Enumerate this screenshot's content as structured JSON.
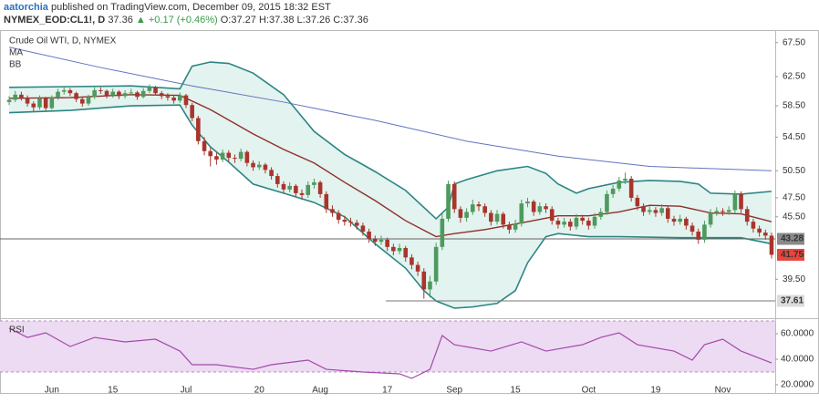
{
  "header": {
    "author": "aatorchia",
    "published": "published on TradingView.com, December 09, 2015 18:32 EST",
    "symbol": "NYMEX_EOD:CL1!, D",
    "price": "37.36",
    "change": "▲ +0.17 (+0.46%)",
    "ohlc": "O:37.27 H:37.38 L:37.26 C:37.36"
  },
  "chart_data": {
    "type": "candlestick",
    "title": "Crude Oil WTI, D, NYMEX",
    "log_scale": true,
    "up_color": "#4e9a5e",
    "down_color": "#a8352c",
    "xlim": [
      -1.5,
      125.6
    ],
    "xticks": [
      {
        "value": 7,
        "label": "Jun"
      },
      {
        "value": 17,
        "label": "15"
      },
      {
        "value": 29,
        "label": "Jul"
      },
      {
        "value": 41,
        "label": "20"
      },
      {
        "value": 51,
        "label": "Aug"
      },
      {
        "value": 62,
        "label": "17"
      },
      {
        "value": 73,
        "label": "Sep"
      },
      {
        "value": 83,
        "label": "15"
      },
      {
        "value": 95,
        "label": "Oct"
      },
      {
        "value": 106,
        "label": "19"
      },
      {
        "value": 117,
        "label": "Nov"
      }
    ],
    "ylim": [
      36.24,
      69.3
    ],
    "yticks": [
      {
        "value": 67.5,
        "label": "67.50"
      },
      {
        "value": 62.5,
        "label": "62.50"
      },
      {
        "value": 58.5,
        "label": "58.50"
      },
      {
        "value": 54.5,
        "label": "54.50"
      },
      {
        "value": 50.5,
        "label": "50.50"
      },
      {
        "value": 47.5,
        "label": "47.50"
      },
      {
        "value": 45.5,
        "label": "45.50"
      },
      {
        "value": 39.5,
        "label": "39.50"
      }
    ],
    "price_lines": [
      {
        "value": 43.28,
        "color": "#8a8a8a"
      },
      {
        "value": 41.75,
        "color": "#e8453c"
      },
      {
        "value": 37.61,
        "color": "#dcdcdc"
      }
    ],
    "ohlc": [
      [
        59.0,
        59.8,
        58.6,
        59.3
      ],
      [
        59.3,
        60.5,
        59.0,
        60.0
      ],
      [
        60.0,
        60.4,
        59.2,
        59.6
      ],
      [
        59.6,
        59.9,
        58.4,
        58.8
      ],
      [
        58.8,
        59.1,
        57.8,
        58.3
      ],
      [
        58.3,
        59.9,
        58.0,
        59.5
      ],
      [
        59.5,
        59.7,
        57.9,
        58.2
      ],
      [
        58.2,
        59.9,
        58.0,
        59.6
      ],
      [
        59.6,
        60.8,
        59.3,
        60.4
      ],
      [
        60.4,
        61.1,
        60.0,
        60.6
      ],
      [
        60.6,
        60.9,
        59.8,
        60.2
      ],
      [
        60.2,
        60.4,
        59.0,
        59.4
      ],
      [
        59.4,
        59.7,
        58.4,
        58.8
      ],
      [
        58.8,
        60.0,
        58.5,
        59.7
      ],
      [
        59.7,
        61.0,
        59.4,
        60.6
      ],
      [
        60.6,
        61.0,
        60.1,
        60.5
      ],
      [
        60.5,
        60.7,
        59.5,
        59.9
      ],
      [
        59.9,
        60.8,
        59.6,
        60.4
      ],
      [
        60.4,
        60.6,
        59.4,
        59.8
      ],
      [
        59.8,
        60.6,
        59.5,
        60.2
      ],
      [
        60.2,
        60.8,
        59.9,
        60.3
      ],
      [
        60.3,
        60.5,
        59.3,
        59.7
      ],
      [
        59.7,
        60.9,
        59.5,
        60.5
      ],
      [
        60.5,
        61.4,
        60.2,
        61.0
      ],
      [
        61.0,
        61.2,
        59.9,
        60.2
      ],
      [
        60.2,
        60.5,
        59.4,
        59.8
      ],
      [
        59.8,
        60.2,
        59.2,
        59.6
      ],
      [
        59.6,
        59.9,
        58.8,
        59.2
      ],
      [
        59.2,
        60.3,
        58.9,
        59.9
      ],
      [
        59.9,
        60.1,
        58.2,
        58.6
      ],
      [
        58.6,
        58.9,
        56.5,
        56.9
      ],
      [
        56.9,
        57.2,
        53.6,
        54.0
      ],
      [
        54.0,
        54.5,
        52.3,
        52.8
      ],
      [
        52.8,
        53.2,
        51.0,
        52.2
      ],
      [
        52.2,
        52.6,
        51.2,
        51.8
      ],
      [
        51.8,
        53.0,
        51.5,
        52.6
      ],
      [
        52.6,
        52.9,
        51.6,
        52.0
      ],
      [
        52.0,
        52.4,
        51.4,
        51.9
      ],
      [
        51.9,
        53.1,
        51.6,
        52.7
      ],
      [
        52.7,
        52.9,
        51.0,
        51.4
      ],
      [
        51.4,
        51.7,
        50.5,
        50.9
      ],
      [
        50.9,
        51.6,
        50.6,
        51.2
      ],
      [
        51.2,
        51.4,
        50.2,
        50.6
      ],
      [
        50.6,
        50.9,
        49.5,
        49.9
      ],
      [
        49.9,
        50.2,
        48.6,
        49.0
      ],
      [
        49.0,
        49.3,
        48.0,
        48.4
      ],
      [
        48.4,
        49.2,
        48.1,
        48.8
      ],
      [
        48.8,
        49.0,
        47.6,
        48.0
      ],
      [
        48.0,
        48.4,
        47.3,
        47.8
      ],
      [
        47.8,
        49.3,
        47.5,
        48.9
      ],
      [
        48.9,
        49.6,
        48.5,
        49.2
      ],
      [
        49.2,
        49.4,
        47.5,
        47.9
      ],
      [
        47.9,
        48.2,
        45.9,
        46.3
      ],
      [
        46.3,
        46.7,
        45.5,
        45.9
      ],
      [
        45.9,
        46.2,
        44.8,
        45.2
      ],
      [
        45.2,
        45.6,
        44.6,
        45.0
      ],
      [
        45.0,
        45.4,
        44.5,
        44.9
      ],
      [
        44.9,
        45.2,
        44.2,
        44.6
      ],
      [
        44.6,
        44.9,
        43.6,
        44.0
      ],
      [
        44.0,
        44.3,
        42.9,
        43.3
      ],
      [
        43.3,
        43.6,
        42.6,
        43.0
      ],
      [
        43.0,
        43.6,
        42.7,
        43.2
      ],
      [
        43.2,
        43.4,
        42.1,
        42.5
      ],
      [
        42.5,
        42.8,
        41.7,
        42.1
      ],
      [
        42.1,
        42.8,
        41.8,
        42.4
      ],
      [
        42.4,
        42.6,
        41.1,
        41.5
      ],
      [
        41.5,
        41.8,
        40.4,
        40.8
      ],
      [
        40.8,
        41.1,
        39.8,
        40.2
      ],
      [
        40.2,
        40.5,
        37.8,
        38.6
      ],
      [
        38.6,
        39.8,
        37.9,
        39.3
      ],
      [
        39.3,
        42.9,
        39.0,
        42.5
      ],
      [
        42.5,
        45.8,
        42.2,
        45.3
      ],
      [
        45.3,
        49.4,
        45.0,
        49.0
      ],
      [
        49.0,
        49.3,
        45.9,
        46.3
      ],
      [
        46.3,
        46.6,
        44.9,
        45.4
      ],
      [
        45.4,
        46.4,
        45.0,
        46.0
      ],
      [
        46.0,
        47.3,
        45.7,
        46.8
      ],
      [
        46.8,
        47.1,
        46.1,
        46.6
      ],
      [
        46.6,
        46.9,
        45.5,
        45.9
      ],
      [
        45.9,
        46.2,
        44.6,
        45.0
      ],
      [
        45.0,
        46.2,
        44.7,
        45.8
      ],
      [
        45.8,
        46.0,
        44.3,
        44.7
      ],
      [
        44.7,
        45.0,
        43.8,
        44.2
      ],
      [
        44.2,
        45.2,
        43.9,
        44.8
      ],
      [
        44.8,
        47.3,
        44.5,
        46.9
      ],
      [
        46.9,
        47.5,
        46.5,
        47.1
      ],
      [
        47.1,
        47.3,
        45.6,
        46.0
      ],
      [
        46.0,
        47.0,
        45.7,
        46.6
      ],
      [
        46.6,
        46.9,
        45.9,
        46.3
      ],
      [
        46.3,
        46.6,
        44.7,
        45.1
      ],
      [
        45.1,
        45.4,
        44.3,
        44.7
      ],
      [
        44.7,
        45.4,
        44.4,
        45.0
      ],
      [
        45.0,
        45.3,
        44.1,
        44.5
      ],
      [
        44.5,
        45.8,
        44.2,
        45.4
      ],
      [
        45.4,
        45.7,
        44.7,
        45.1
      ],
      [
        45.1,
        45.4,
        44.2,
        44.6
      ],
      [
        44.6,
        45.9,
        44.3,
        45.5
      ],
      [
        45.5,
        46.4,
        45.2,
        46.0
      ],
      [
        46.0,
        48.3,
        45.7,
        47.9
      ],
      [
        47.9,
        48.9,
        47.5,
        48.5
      ],
      [
        48.5,
        49.8,
        48.2,
        49.4
      ],
      [
        49.4,
        50.3,
        49.0,
        49.6
      ],
      [
        49.6,
        49.9,
        47.1,
        47.5
      ],
      [
        47.5,
        47.8,
        46.2,
        46.6
      ],
      [
        46.6,
        46.9,
        45.6,
        46.0
      ],
      [
        46.0,
        46.6,
        45.7,
        46.2
      ],
      [
        46.2,
        46.5,
        45.5,
        45.9
      ],
      [
        45.9,
        46.8,
        45.6,
        46.4
      ],
      [
        46.4,
        46.6,
        44.9,
        45.3
      ],
      [
        45.3,
        45.6,
        44.6,
        45.0
      ],
      [
        45.0,
        45.7,
        44.7,
        45.3
      ],
      [
        45.3,
        45.5,
        44.2,
        44.6
      ],
      [
        44.6,
        44.9,
        43.6,
        44.0
      ],
      [
        44.0,
        44.3,
        42.8,
        43.2
      ],
      [
        43.2,
        45.1,
        42.9,
        44.7
      ],
      [
        44.7,
        46.3,
        44.4,
        45.9
      ],
      [
        45.9,
        46.5,
        45.6,
        46.1
      ],
      [
        46.1,
        46.4,
        45.6,
        46.0
      ],
      [
        46.0,
        46.6,
        45.7,
        46.2
      ],
      [
        46.2,
        48.3,
        45.9,
        47.9
      ],
      [
        47.9,
        48.2,
        45.9,
        46.3
      ],
      [
        46.3,
        46.6,
        44.6,
        45.0
      ],
      [
        45.0,
        45.3,
        43.9,
        44.3
      ],
      [
        44.3,
        44.6,
        43.5,
        43.9
      ],
      [
        43.9,
        44.2,
        43.2,
        43.6
      ],
      [
        43.6,
        43.9,
        41.4,
        41.75
      ]
    ],
    "ma": {
      "name": "MA",
      "color": "#5f74c0",
      "x": [
        0,
        15,
        30,
        45,
        60,
        75,
        90,
        105,
        125
      ],
      "values": [
        66.8,
        63.8,
        61.2,
        59.0,
        56.6,
        54.0,
        52.2,
        51.0,
        50.5
      ]
    },
    "bb": {
      "name": "BB",
      "color": "#2b8583",
      "basis_color": "#8e2f2a",
      "fill": "#e3f3ef",
      "upper": {
        "x": [
          0,
          10,
          20,
          28,
          30,
          33,
          36,
          40,
          45,
          50,
          55,
          58,
          60,
          65,
          70,
          72,
          73,
          75,
          80,
          85,
          88,
          90,
          93,
          95,
          100,
          105,
          110,
          113,
          115,
          120,
          125
        ],
        "values": [
          61.0,
          61.1,
          61.2,
          60.8,
          64.0,
          64.6,
          64.4,
          63.0,
          60.0,
          55.2,
          52.4,
          51.2,
          50.4,
          48.3,
          45.3,
          46.5,
          49.0,
          49.5,
          50.5,
          51.0,
          50.2,
          49.0,
          48.0,
          48.5,
          49.2,
          49.4,
          49.3,
          49.0,
          48.0,
          47.9,
          48.2
        ]
      },
      "basis": {
        "x": [
          0,
          10,
          20,
          28,
          33,
          40,
          45,
          50,
          55,
          60,
          65,
          70,
          73,
          78,
          85,
          90,
          95,
          100,
          105,
          110,
          115,
          120,
          125
        ],
        "values": [
          59.5,
          59.6,
          60.0,
          59.9,
          58.0,
          54.9,
          53.0,
          51.4,
          49.2,
          47.2,
          45.1,
          43.5,
          43.8,
          44.2,
          45.0,
          45.6,
          45.6,
          46.0,
          46.7,
          46.6,
          45.9,
          45.8,
          45.0
        ]
      },
      "lower": {
        "x": [
          0,
          10,
          20,
          28,
          30,
          33,
          36,
          40,
          45,
          50,
          55,
          60,
          65,
          68,
          70,
          73,
          76,
          80,
          83,
          85,
          88,
          90,
          95,
          100,
          110,
          115,
          120,
          125
        ],
        "values": [
          57.6,
          57.9,
          58.5,
          58.6,
          56.0,
          53.3,
          51.5,
          49.0,
          48.0,
          47.0,
          45.5,
          42.8,
          40.5,
          38.5,
          37.6,
          37.0,
          37.1,
          37.4,
          38.5,
          41.0,
          43.5,
          43.8,
          43.5,
          43.5,
          43.4,
          43.4,
          43.4,
          42.8
        ]
      }
    },
    "rsi": {
      "name": "RSI",
      "color": "#a34aa8",
      "band": [
        30,
        70
      ],
      "band_color": "#eddaf3",
      "ylim": [
        12.86,
        72.86
      ],
      "yticks": [
        {
          "value": 60,
          "label": "60.0000"
        },
        {
          "value": 40,
          "label": "40.0000"
        },
        {
          "value": 20,
          "label": "20.0000"
        }
      ],
      "x": [
        0,
        3,
        6,
        10,
        14,
        19,
        24,
        28,
        30,
        34,
        40,
        43,
        49,
        52,
        58,
        64,
        66,
        69,
        71,
        73,
        79,
        84,
        88,
        94,
        97,
        100,
        103,
        109,
        112,
        114,
        117,
        120,
        125
      ],
      "values": [
        64.3,
        57.1,
        60.7,
        50,
        57.1,
        53.6,
        55.7,
        46.4,
        35.7,
        35.7,
        32.1,
        35.7,
        39.3,
        32.1,
        30,
        28.6,
        25,
        32.1,
        58.6,
        51.4,
        46.4,
        53.6,
        46.4,
        51.4,
        57.1,
        60.7,
        51.4,
        46.4,
        39.3,
        51.4,
        55.7,
        46.4,
        37.1
      ]
    }
  }
}
